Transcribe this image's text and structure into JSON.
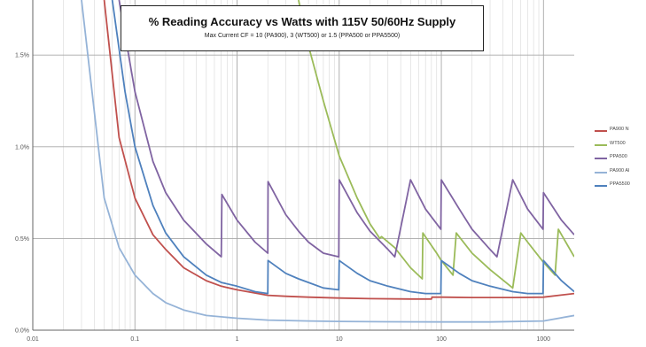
{
  "chart_data": {
    "type": "line",
    "title": "% Reading Accuracy vs Watts with 115V 50/60Hz Supply",
    "subtitle": "Max Current CF = 10 (PA900), 3 (WT500) or 1.5 (PPA500 or PPA5500)",
    "xlabel": "",
    "ylabel": "",
    "xscale": "log",
    "xlim": [
      0.01,
      2000
    ],
    "ylim": [
      0,
      1.8
    ],
    "x_ticks": [
      0.01,
      0.1,
      1,
      10,
      100,
      1000
    ],
    "x_tick_labels": [
      "0.01",
      "0.1",
      "1",
      "10",
      "100",
      "1000"
    ],
    "y_ticks": [
      0,
      0.5,
      1.0,
      1.5
    ],
    "y_tick_labels": [
      "0.0%",
      "0.5%",
      "1.0%",
      "1.5%"
    ],
    "grid": true,
    "legend_position": "right",
    "series": [
      {
        "name": "PA900 N",
        "color": "#c0504d",
        "x": [
          0.05,
          0.07,
          0.1,
          0.15,
          0.2,
          0.3,
          0.5,
          0.7,
          1,
          2,
          3,
          5,
          10,
          20,
          50,
          80,
          81,
          100,
          200,
          500,
          1000,
          2000
        ],
        "y": [
          1.8,
          1.05,
          0.72,
          0.52,
          0.44,
          0.34,
          0.27,
          0.24,
          0.22,
          0.19,
          0.185,
          0.18,
          0.175,
          0.172,
          0.17,
          0.17,
          0.18,
          0.18,
          0.178,
          0.178,
          0.18,
          0.2
        ]
      },
      {
        "name": "WT500",
        "color": "#9bbb59",
        "x": [
          4,
          5,
          7,
          10,
          15,
          20,
          25,
          26,
          35,
          50,
          65,
          66,
          90,
          100,
          130,
          140,
          200,
          300,
          500,
          600,
          700,
          1000,
          1300,
          1400,
          2000
        ],
        "y": [
          1.8,
          1.55,
          1.25,
          0.95,
          0.72,
          0.58,
          0.5,
          0.51,
          0.45,
          0.34,
          0.28,
          0.53,
          0.42,
          0.38,
          0.3,
          0.53,
          0.42,
          0.33,
          0.23,
          0.53,
          0.48,
          0.37,
          0.3,
          0.55,
          0.4
        ]
      },
      {
        "name": "PPA500",
        "color": "#8064a2",
        "x": [
          0.07,
          0.1,
          0.15,
          0.2,
          0.3,
          0.5,
          0.7,
          0.71,
          1,
          1.5,
          2,
          2.01,
          3,
          4,
          5,
          7,
          9.9,
          10,
          15,
          20,
          30,
          35,
          50,
          70,
          99,
          100,
          150,
          200,
          300,
          350,
          500,
          700,
          990,
          1000,
          1500,
          2000
        ],
        "y": [
          1.8,
          1.3,
          0.92,
          0.75,
          0.6,
          0.47,
          0.4,
          0.74,
          0.6,
          0.48,
          0.42,
          0.81,
          0.63,
          0.54,
          0.48,
          0.42,
          0.4,
          0.82,
          0.64,
          0.54,
          0.44,
          0.4,
          0.82,
          0.66,
          0.55,
          0.82,
          0.66,
          0.55,
          0.44,
          0.4,
          0.82,
          0.66,
          0.55,
          0.75,
          0.6,
          0.52
        ]
      },
      {
        "name": "PA900 Al",
        "color": "#95b3d7",
        "x": [
          0.03,
          0.05,
          0.07,
          0.1,
          0.15,
          0.2,
          0.3,
          0.5,
          1,
          2,
          5,
          10,
          30,
          100,
          300,
          1000,
          2000
        ],
        "y": [
          1.8,
          0.72,
          0.45,
          0.3,
          0.2,
          0.15,
          0.11,
          0.08,
          0.065,
          0.055,
          0.05,
          0.048,
          0.046,
          0.045,
          0.045,
          0.05,
          0.08
        ]
      },
      {
        "name": "PPA5500",
        "color": "#4f81bd",
        "x": [
          0.06,
          0.08,
          0.1,
          0.15,
          0.2,
          0.3,
          0.5,
          0.7,
          1,
          1.5,
          2,
          2.01,
          3,
          4,
          5,
          7,
          9.9,
          10,
          15,
          20,
          30,
          50,
          70,
          90,
          99,
          100,
          150,
          200,
          300,
          500,
          700,
          990,
          1000,
          1500,
          2000
        ],
        "y": [
          1.8,
          1.3,
          1.0,
          0.68,
          0.53,
          0.4,
          0.3,
          0.26,
          0.24,
          0.21,
          0.2,
          0.38,
          0.31,
          0.28,
          0.26,
          0.23,
          0.22,
          0.38,
          0.31,
          0.27,
          0.24,
          0.21,
          0.2,
          0.2,
          0.2,
          0.38,
          0.31,
          0.27,
          0.24,
          0.21,
          0.2,
          0.2,
          0.38,
          0.27,
          0.21
        ]
      }
    ]
  }
}
